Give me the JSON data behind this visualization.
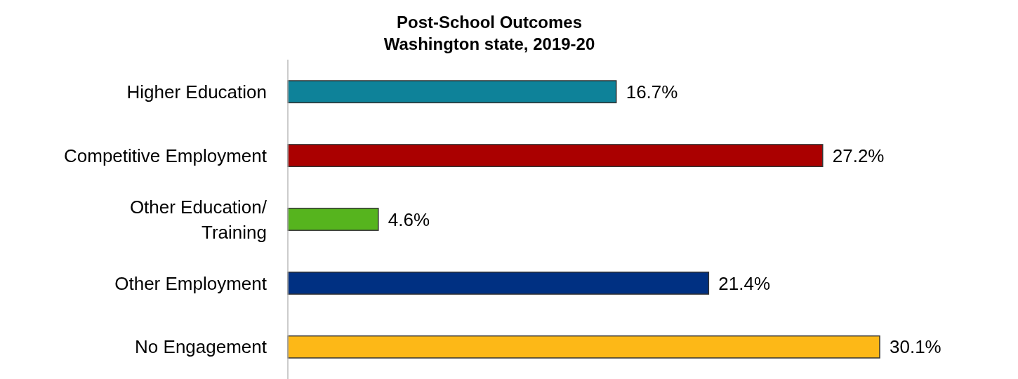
{
  "chart_data": {
    "type": "bar",
    "orientation": "horizontal",
    "title": "Post-School Outcomes\nWashington state, 2019-20",
    "categories": [
      "Higher Education",
      "Competitive Employment",
      "Other Education/\nTraining",
      "Other Employment",
      "No Engagement"
    ],
    "values": [
      16.7,
      27.2,
      4.6,
      21.4,
      30.1
    ],
    "value_labels": [
      "16.7%",
      "27.2%",
      "4.6%",
      "21.4%",
      "30.1%"
    ],
    "colors": [
      "#0e8299",
      "#aa0000",
      "#56b41e",
      "#003082",
      "#fdb817"
    ]
  }
}
